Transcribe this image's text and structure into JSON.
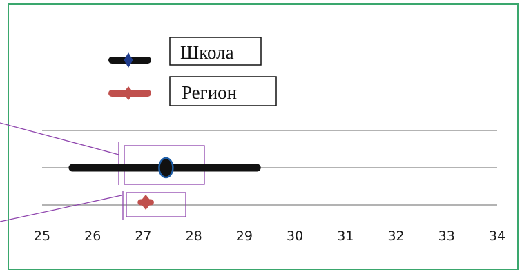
{
  "chart_data": {
    "type": "scatter",
    "title": "",
    "xlabel": "",
    "ylabel": "",
    "xlim": [
      25,
      34
    ],
    "xticks": [
      25,
      26,
      27,
      28,
      29,
      30,
      31,
      32,
      33,
      34
    ],
    "xtick_labels": [
      "25",
      "26",
      "27",
      "28",
      "29",
      "30",
      "31",
      "32",
      "33",
      "34"
    ],
    "grid": true,
    "legend": {
      "placement": "top-left",
      "entries": [
        {
          "label": "Школа",
          "color": "#111111",
          "marker_color": "#1f3b8c",
          "marker": "diamond"
        },
        {
          "label": "Регион",
          "color": "#c0504d",
          "marker": "diamond"
        }
      ]
    },
    "series": [
      {
        "name": "Школа",
        "center": 27.45,
        "low": 25.6,
        "high": 29.25,
        "color": "#111111",
        "marker_edge": "#1f5fa8"
      },
      {
        "name": "Регион",
        "center": 27.05,
        "low": 26.95,
        "high": 27.15,
        "color": "#c0504d"
      }
    ],
    "annotation_color": "#8e44ad",
    "frame_color": "#3aa76d"
  }
}
